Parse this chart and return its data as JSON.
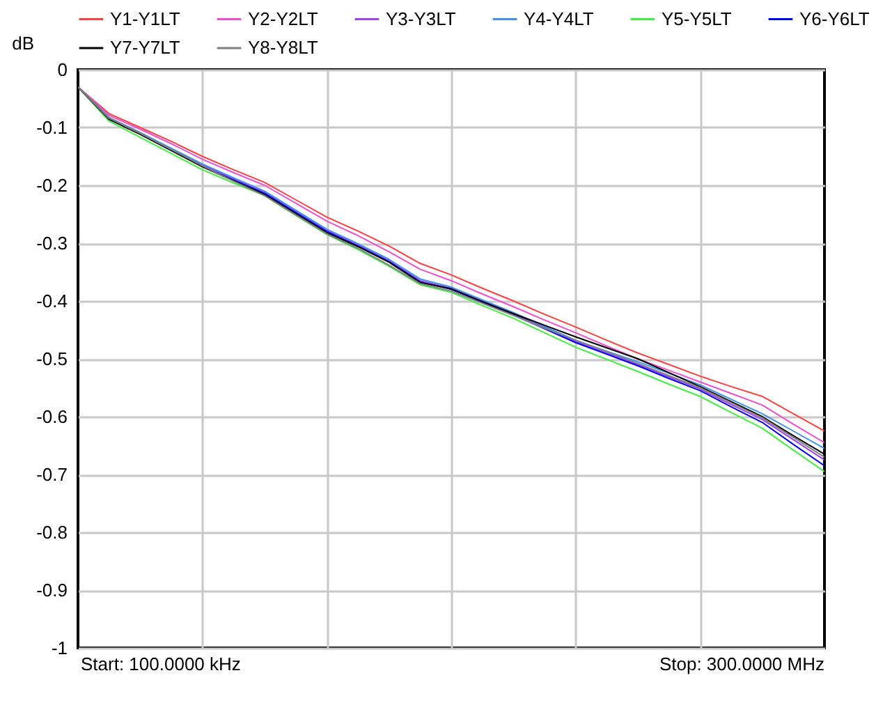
{
  "chart_data": {
    "type": "line",
    "ylabel": "dB",
    "legend": "top",
    "grid": true,
    "tick_labels": "y",
    "line_style": "solid",
    "categories": [
      null,
      null,
      null,
      null,
      null,
      null,
      null,
      null,
      null,
      null,
      null,
      null,
      null,
      null,
      null,
      null,
      null,
      null,
      null,
      null,
      null,
      null,
      null,
      null,
      null
    ],
    "ylim": [
      -1,
      0
    ],
    "yticks": [
      0,
      -0.1,
      -0.2,
      -0.3,
      -0.4,
      -0.5,
      -0.6,
      -0.7,
      -0.8,
      -0.9,
      -1
    ],
    "annotations": [
      "Start: 100.0000 kHz",
      "Stop: 300.0000 MHz"
    ],
    "series": [
      {
        "name": "Y1-Y1LT",
        "color": "#ff4040",
        "values": [
          -0.03,
          -0.076,
          -0.1,
          -0.124,
          -0.15,
          -0.173,
          -0.195,
          -0.225,
          -0.255,
          -0.279,
          -0.305,
          -0.335,
          -0.355,
          -0.378,
          -0.4,
          -0.423,
          -0.445,
          -0.468,
          -0.49,
          -0.51,
          -0.53,
          -0.548,
          -0.565,
          -0.595,
          -0.625
        ]
      },
      {
        "name": "Y2-Y2LT",
        "color": "#f050d0",
        "values": [
          -0.03,
          -0.079,
          -0.103,
          -0.128,
          -0.155,
          -0.178,
          -0.2,
          -0.231,
          -0.262,
          -0.287,
          -0.315,
          -0.345,
          -0.365,
          -0.388,
          -0.41,
          -0.433,
          -0.455,
          -0.478,
          -0.5,
          -0.52,
          -0.54,
          -0.56,
          -0.58,
          -0.613,
          -0.645
        ]
      },
      {
        "name": "Y3-Y3LT",
        "color": "#a040f0",
        "values": [
          -0.03,
          -0.083,
          -0.109,
          -0.137,
          -0.165,
          -0.189,
          -0.212,
          -0.245,
          -0.278,
          -0.303,
          -0.33,
          -0.365,
          -0.378,
          -0.4,
          -0.422,
          -0.446,
          -0.47,
          -0.49,
          -0.51,
          -0.531,
          -0.552,
          -0.579,
          -0.605,
          -0.64,
          -0.675
        ]
      },
      {
        "name": "Y4-Y4LT",
        "color": "#4090f0",
        "values": [
          -0.03,
          -0.083,
          -0.109,
          -0.136,
          -0.163,
          -0.187,
          -0.21,
          -0.243,
          -0.276,
          -0.301,
          -0.328,
          -0.362,
          -0.376,
          -0.398,
          -0.42,
          -0.444,
          -0.468,
          -0.487,
          -0.505,
          -0.525,
          -0.545,
          -0.57,
          -0.595,
          -0.625,
          -0.655
        ]
      },
      {
        "name": "Y5-Y5LT",
        "color": "#40f040",
        "values": [
          -0.03,
          -0.089,
          -0.117,
          -0.145,
          -0.173,
          -0.196,
          -0.218,
          -0.252,
          -0.285,
          -0.311,
          -0.34,
          -0.372,
          -0.385,
          -0.408,
          -0.43,
          -0.455,
          -0.48,
          -0.501,
          -0.522,
          -0.544,
          -0.565,
          -0.593,
          -0.62,
          -0.658,
          -0.695
        ]
      },
      {
        "name": "Y6-Y6LT",
        "color": "#0000ff",
        "values": [
          -0.03,
          -0.085,
          -0.111,
          -0.139,
          -0.167,
          -0.191,
          -0.214,
          -0.247,
          -0.28,
          -0.305,
          -0.332,
          -0.367,
          -0.38,
          -0.402,
          -0.424,
          -0.448,
          -0.472,
          -0.492,
          -0.512,
          -0.534,
          -0.555,
          -0.583,
          -0.61,
          -0.648,
          -0.685
        ]
      },
      {
        "name": "Y7-Y7LT",
        "color": "#000000",
        "values": [
          -0.03,
          -0.086,
          -0.112,
          -0.14,
          -0.168,
          -0.192,
          -0.216,
          -0.249,
          -0.282,
          -0.306,
          -0.333,
          -0.368,
          -0.379,
          -0.401,
          -0.422,
          -0.442,
          -0.462,
          -0.481,
          -0.5,
          -0.524,
          -0.548,
          -0.574,
          -0.6,
          -0.633,
          -0.665
        ]
      },
      {
        "name": "Y8-Y8LT",
        "color": "#808080",
        "values": [
          -0.03,
          -0.084,
          -0.11,
          -0.138,
          -0.166,
          -0.193,
          -0.218,
          -0.251,
          -0.284,
          -0.309,
          -0.338,
          -0.37,
          -0.383,
          -0.404,
          -0.425,
          -0.447,
          -0.468,
          -0.488,
          -0.508,
          -0.529,
          -0.55,
          -0.576,
          -0.602,
          -0.636,
          -0.67
        ]
      }
    ]
  }
}
